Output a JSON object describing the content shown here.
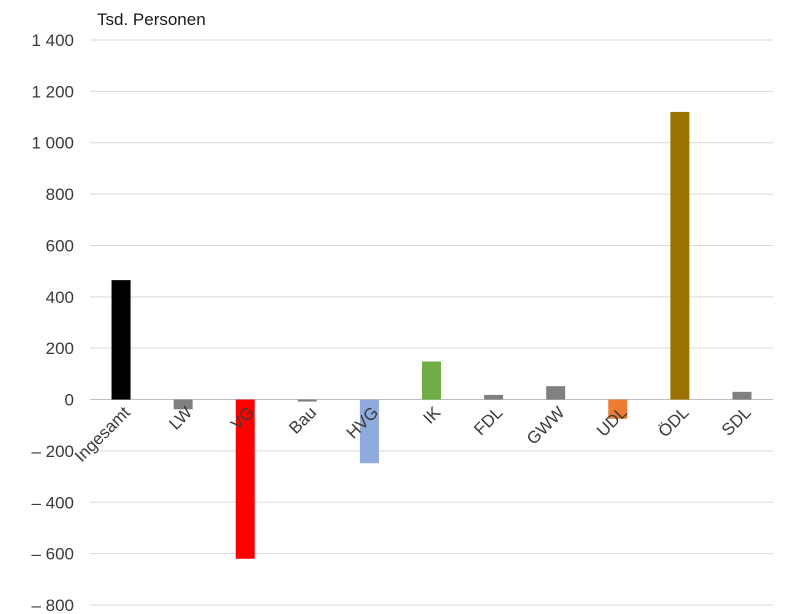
{
  "chart_data": {
    "type": "bar",
    "unit_label": "Tsd. Personen",
    "categories": [
      "Ingesamt",
      "LW",
      "VG",
      "Bau",
      "HVG",
      "IK",
      "FDL",
      "GWW",
      "UDL",
      "ÖDL",
      "SDL"
    ],
    "values": [
      465,
      -38,
      -620,
      -8,
      -248,
      148,
      18,
      52,
      -75,
      1120,
      30
    ],
    "colors": [
      "#000000",
      "#808080",
      "#ff0000",
      "#808080",
      "#8faadc",
      "#70ad47",
      "#808080",
      "#808080",
      "#ed7d31",
      "#9c7200",
      "#808080"
    ],
    "ylim": [
      -800,
      1400
    ],
    "yticks": [
      1400,
      1200,
      1000,
      800,
      600,
      400,
      200,
      0,
      -200,
      -400,
      -600,
      -800
    ],
    "ytick_labels": [
      "1 400",
      "1 200",
      "1 000",
      "800",
      "600",
      "400",
      "200",
      "0",
      "– 200",
      "– 400",
      "– 600",
      "– 800"
    ],
    "grid": true,
    "legend": "none"
  }
}
